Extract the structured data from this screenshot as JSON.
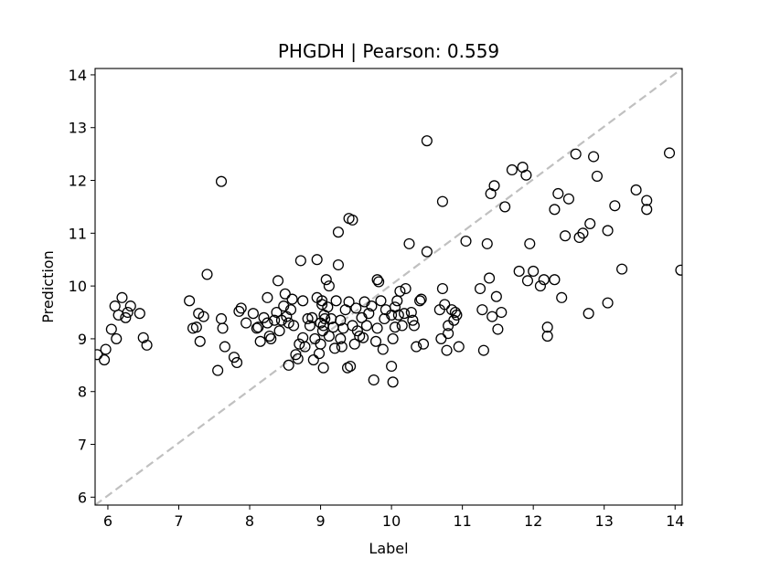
{
  "chart_data": {
    "type": "scatter",
    "title": "PHGDH  |  Pearson: 0.559",
    "xlabel": "Label",
    "ylabel": "Prediction",
    "xlim": [
      5.82,
      14.1
    ],
    "ylim": [
      5.85,
      14.12
    ],
    "xticks": [
      6,
      7,
      8,
      9,
      10,
      11,
      12,
      13,
      14
    ],
    "yticks": [
      6,
      7,
      8,
      9,
      10,
      11,
      12,
      13,
      14
    ],
    "grid": false,
    "marker": "hollow-circle",
    "reference_line": {
      "style": "dashed",
      "color": "#c0c0c0",
      "from": [
        5.82,
        5.85
      ],
      "to": [
        14.1,
        14.12
      ]
    },
    "points": [
      [
        5.85,
        8.7
      ],
      [
        5.95,
        8.6
      ],
      [
        5.97,
        8.8
      ],
      [
        6.05,
        9.18
      ],
      [
        6.1,
        9.62
      ],
      [
        6.15,
        9.45
      ],
      [
        6.2,
        9.78
      ],
      [
        6.25,
        9.4
      ],
      [
        6.28,
        9.5
      ],
      [
        6.32,
        9.62
      ],
      [
        6.45,
        9.48
      ],
      [
        6.5,
        9.02
      ],
      [
        6.55,
        8.88
      ],
      [
        6.12,
        9.0
      ],
      [
        7.15,
        9.72
      ],
      [
        7.2,
        9.2
      ],
      [
        7.25,
        9.22
      ],
      [
        7.28,
        9.48
      ],
      [
        7.3,
        8.95
      ],
      [
        7.35,
        9.42
      ],
      [
        7.4,
        10.22
      ],
      [
        7.55,
        8.4
      ],
      [
        7.6,
        9.38
      ],
      [
        7.6,
        11.98
      ],
      [
        7.62,
        9.2
      ],
      [
        7.65,
        8.85
      ],
      [
        7.78,
        8.65
      ],
      [
        7.82,
        8.55
      ],
      [
        7.85,
        9.52
      ],
      [
        7.88,
        9.58
      ],
      [
        7.95,
        9.3
      ],
      [
        8.05,
        9.48
      ],
      [
        8.1,
        9.2
      ],
      [
        8.12,
        9.22
      ],
      [
        8.15,
        8.95
      ],
      [
        8.2,
        9.4
      ],
      [
        8.25,
        9.3
      ],
      [
        8.25,
        9.78
      ],
      [
        8.28,
        9.05
      ],
      [
        8.3,
        9.0
      ],
      [
        8.35,
        9.35
      ],
      [
        8.38,
        9.5
      ],
      [
        8.4,
        10.1
      ],
      [
        8.42,
        9.15
      ],
      [
        8.45,
        9.35
      ],
      [
        8.48,
        9.62
      ],
      [
        8.5,
        9.85
      ],
      [
        8.52,
        9.42
      ],
      [
        8.55,
        8.5
      ],
      [
        8.55,
        9.3
      ],
      [
        8.58,
        9.55
      ],
      [
        8.6,
        9.75
      ],
      [
        8.62,
        9.25
      ],
      [
        8.65,
        8.7
      ],
      [
        8.68,
        8.62
      ],
      [
        8.7,
        8.9
      ],
      [
        8.72,
        10.48
      ],
      [
        8.75,
        9.02
      ],
      [
        8.75,
        9.72
      ],
      [
        8.78,
        8.85
      ],
      [
        8.82,
        9.38
      ],
      [
        8.85,
        9.25
      ],
      [
        8.88,
        9.4
      ],
      [
        8.9,
        8.6
      ],
      [
        8.92,
        9.0
      ],
      [
        8.95,
        9.78
      ],
      [
        8.95,
        10.5
      ],
      [
        8.98,
        8.72
      ],
      [
        9.0,
        9.3
      ],
      [
        9.0,
        8.9
      ],
      [
        9.02,
        9.65
      ],
      [
        9.02,
        9.72
      ],
      [
        9.03,
        9.15
      ],
      [
        9.04,
        9.25
      ],
      [
        9.04,
        8.45
      ],
      [
        9.05,
        9.45
      ],
      [
        9.06,
        9.38
      ],
      [
        9.08,
        10.12
      ],
      [
        9.1,
        9.6
      ],
      [
        9.12,
        10.0
      ],
      [
        9.12,
        9.05
      ],
      [
        9.15,
        9.38
      ],
      [
        9.18,
        9.22
      ],
      [
        9.2,
        8.82
      ],
      [
        9.22,
        9.72
      ],
      [
        9.25,
        10.4
      ],
      [
        9.25,
        11.02
      ],
      [
        9.28,
        9.35
      ],
      [
        9.28,
        9.0
      ],
      [
        9.3,
        8.85
      ],
      [
        9.32,
        9.2
      ],
      [
        9.35,
        9.55
      ],
      [
        9.38,
        8.45
      ],
      [
        9.4,
        9.7
      ],
      [
        9.4,
        11.28
      ],
      [
        9.42,
        8.48
      ],
      [
        9.45,
        9.25
      ],
      [
        9.45,
        11.25
      ],
      [
        9.48,
        8.9
      ],
      [
        9.5,
        9.58
      ],
      [
        9.52,
        9.15
      ],
      [
        9.55,
        9.05
      ],
      [
        9.58,
        9.4
      ],
      [
        9.6,
        9.02
      ],
      [
        9.62,
        9.7
      ],
      [
        9.65,
        9.25
      ],
      [
        9.68,
        9.48
      ],
      [
        9.72,
        9.62
      ],
      [
        9.75,
        8.22
      ],
      [
        9.78,
        8.95
      ],
      [
        9.8,
        9.2
      ],
      [
        9.8,
        10.12
      ],
      [
        9.82,
        10.08
      ],
      [
        9.85,
        9.72
      ],
      [
        9.88,
        8.8
      ],
      [
        9.9,
        9.38
      ],
      [
        9.92,
        9.55
      ],
      [
        10.0,
        8.48
      ],
      [
        10.0,
        9.45
      ],
      [
        10.02,
        8.18
      ],
      [
        10.02,
        9.0
      ],
      [
        10.05,
        9.22
      ],
      [
        10.05,
        9.6
      ],
      [
        10.08,
        9.72
      ],
      [
        10.1,
        9.45
      ],
      [
        10.12,
        9.9
      ],
      [
        10.15,
        9.25
      ],
      [
        10.18,
        9.48
      ],
      [
        10.2,
        9.95
      ],
      [
        10.25,
        10.8
      ],
      [
        10.28,
        9.5
      ],
      [
        10.3,
        9.35
      ],
      [
        10.32,
        9.25
      ],
      [
        10.35,
        8.85
      ],
      [
        10.4,
        9.72
      ],
      [
        10.42,
        9.75
      ],
      [
        10.45,
        8.9
      ],
      [
        10.5,
        10.65
      ],
      [
        10.5,
        12.75
      ],
      [
        10.68,
        9.55
      ],
      [
        10.7,
        9.0
      ],
      [
        10.72,
        11.6
      ],
      [
        10.72,
        9.95
      ],
      [
        10.75,
        9.65
      ],
      [
        10.78,
        8.78
      ],
      [
        10.8,
        9.25
      ],
      [
        10.8,
        9.1
      ],
      [
        10.85,
        9.55
      ],
      [
        10.88,
        9.35
      ],
      [
        10.9,
        9.5
      ],
      [
        10.92,
        9.45
      ],
      [
        10.95,
        8.85
      ],
      [
        11.05,
        10.85
      ],
      [
        11.25,
        9.95
      ],
      [
        11.28,
        9.55
      ],
      [
        11.3,
        8.78
      ],
      [
        11.35,
        10.8
      ],
      [
        11.38,
        10.15
      ],
      [
        11.4,
        11.75
      ],
      [
        11.42,
        9.42
      ],
      [
        11.45,
        11.9
      ],
      [
        11.48,
        9.8
      ],
      [
        11.5,
        9.18
      ],
      [
        11.55,
        9.5
      ],
      [
        11.6,
        11.5
      ],
      [
        11.7,
        12.2
      ],
      [
        11.8,
        10.28
      ],
      [
        11.85,
        12.25
      ],
      [
        11.9,
        12.1
      ],
      [
        11.92,
        10.1
      ],
      [
        11.95,
        10.8
      ],
      [
        12.0,
        10.28
      ],
      [
        12.1,
        10.0
      ],
      [
        12.15,
        10.12
      ],
      [
        12.2,
        9.22
      ],
      [
        12.2,
        9.05
      ],
      [
        12.3,
        11.45
      ],
      [
        12.3,
        10.12
      ],
      [
        12.35,
        11.75
      ],
      [
        12.4,
        9.78
      ],
      [
        12.45,
        10.95
      ],
      [
        12.5,
        11.65
      ],
      [
        12.6,
        12.5
      ],
      [
        12.65,
        10.92
      ],
      [
        12.7,
        11.0
      ],
      [
        12.78,
        9.48
      ],
      [
        12.8,
        11.18
      ],
      [
        12.85,
        12.45
      ],
      [
        12.9,
        12.08
      ],
      [
        13.05,
        11.05
      ],
      [
        13.05,
        9.68
      ],
      [
        13.15,
        11.52
      ],
      [
        13.25,
        10.32
      ],
      [
        13.45,
        11.82
      ],
      [
        13.6,
        11.62
      ],
      [
        13.6,
        11.45
      ],
      [
        13.92,
        12.52
      ],
      [
        14.08,
        10.3
      ]
    ]
  }
}
